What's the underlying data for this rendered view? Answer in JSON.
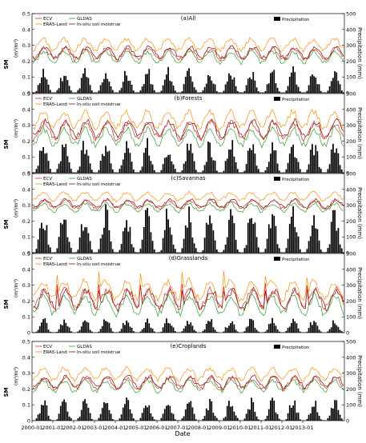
{
  "chart_data": {
    "type": "line",
    "x_axis": {
      "label": "Date",
      "ticks": [
        "2000-01",
        "2001-01",
        "2002-01",
        "2003-01",
        "2004-01",
        "2005-01",
        "2006-01",
        "2007-01",
        "2008-01",
        "2009-01",
        "2010-01",
        "2011-01",
        "2012-01",
        "2013-01"
      ],
      "range": [
        "2000-01",
        "2014-12"
      ]
    },
    "y_left": {
      "label": "SM",
      "unit": "(m³/m³)",
      "ticks": [
        0,
        0.1,
        0.2,
        0.3,
        0.4,
        0.5
      ],
      "range": [
        0,
        0.5
      ]
    },
    "y_right": {
      "label": "Precipitation (mm)",
      "ticks": [
        0,
        100,
        200,
        300,
        400,
        500
      ],
      "range": [
        0,
        500
      ]
    },
    "legend": {
      "ecv": "ECV",
      "era5": "ERA5-Land",
      "gldas": "GLDAS",
      "insitu": "In-situ soil moistrue",
      "precip": "Precipitation"
    },
    "colors": {
      "ecv": "#d62728",
      "era5": "#ff8c00",
      "gldas": "#2ca02c",
      "insitu": "#8b0000",
      "precip": "#000000"
    },
    "panels": [
      {
        "title": "(a)All",
        "ecv": 0.245,
        "era5": 0.305,
        "gldas": 0.225,
        "insitu": 0.255,
        "amp_sm": 0.035,
        "precip_peak": 130
      },
      {
        "title": "(b)Forests",
        "ecv": 0.265,
        "era5": 0.335,
        "gldas": 0.225,
        "insitu": 0.275,
        "amp_sm": 0.05,
        "precip_peak": 180
      },
      {
        "title": "(c)Savannas",
        "ecv": 0.305,
        "era5": 0.355,
        "gldas": 0.285,
        "insitu": 0.31,
        "amp_sm": 0.025,
        "precip_peak": 240
      },
      {
        "title": "(d)Grasslands",
        "ecv": 0.215,
        "era5": 0.27,
        "gldas": 0.175,
        "insitu": 0.21,
        "amp_sm": 0.055,
        "precip_peak": 80
      },
      {
        "title": "(e)Croplands",
        "ecv": 0.235,
        "era5": 0.295,
        "gldas": 0.22,
        "insitu": 0.245,
        "amp_sm": 0.035,
        "precip_peak": 120
      }
    ]
  }
}
